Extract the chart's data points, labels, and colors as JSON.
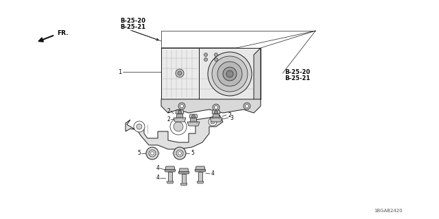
{
  "bg_color": "#ffffff",
  "colors": {
    "line": "#1a1a1a",
    "text": "#000000",
    "bg": "#ffffff",
    "light_fill": "#e8e8e8",
    "mid_fill": "#d0d0d0",
    "dark_fill": "#888888",
    "very_dark": "#404040"
  },
  "font_sizes": {
    "ref": 5.5,
    "part_num": 5.5,
    "fr": 6.5,
    "diagram_id": 5.0
  },
  "labels": {
    "tl_ref": [
      "B-25-20",
      "B-25-21"
    ],
    "tr_ref": [
      "B-25-20",
      "B-25-21"
    ],
    "diagram_id": "1BGAB2420"
  }
}
